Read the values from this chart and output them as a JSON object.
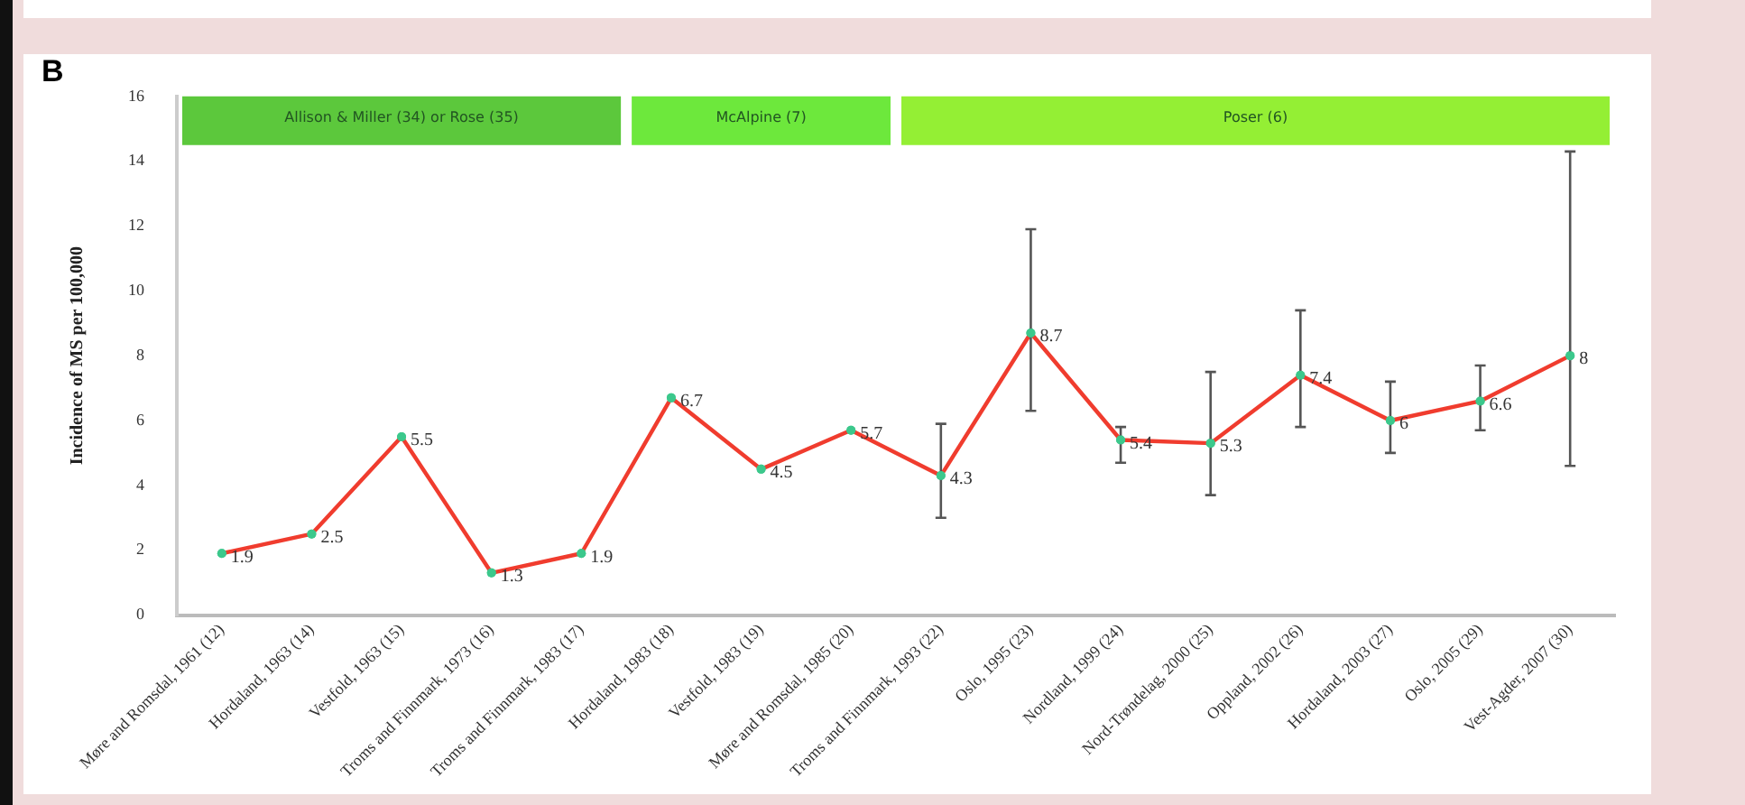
{
  "chart_data": {
    "type": "line",
    "ylabel": "Incidence of MS per 100,000",
    "annotations": [
      "B"
    ],
    "categories": [
      "Møre and Romsdal, 1961 (12)",
      "Hordaland, 1963 (14)",
      "Vestfold, 1963 (15)",
      "Troms and Finnmark, 1973 (16)",
      "Troms and Finnmark, 1983 (17)",
      "Hordaland, 1983 (18)",
      "Vestfold, 1983 (19)",
      "Møre and Romsdal, 1985 (20)",
      "Troms and Finnmark, 1993 (22)",
      "Oslo, 1995 (23)",
      "Nordland, 1999 (24)",
      "Nord-Trøndelag, 2000 (25)",
      "Oppland, 2002 (26)",
      "Hordaland, 2003 (27)",
      "Oslo, 2005 (29)",
      "Vest-Agder, 2007 (30)"
    ],
    "series": [
      {
        "color": "#f03c2e",
        "values": [
          1.9,
          2.5,
          5.5,
          1.3,
          1.9,
          6.7,
          4.5,
          5.7,
          4.3,
          8.7,
          5.4,
          5.3,
          7.4,
          6,
          6.6,
          8
        ],
        "errors": [
          null,
          null,
          null,
          null,
          null,
          null,
          null,
          null,
          [
            3.0,
            5.9
          ],
          [
            6.3,
            11.9
          ],
          [
            4.7,
            5.8
          ],
          [
            3.7,
            7.5
          ],
          [
            5.8,
            9.4
          ],
          [
            5.0,
            7.2
          ],
          [
            5.7,
            7.7
          ],
          [
            4.6,
            14.3
          ]
        ]
      }
    ],
    "marker": "circle",
    "line_style": "solid",
    "data_labels": true,
    "grid": false,
    "legend": false,
    "ylim": [
      0,
      16
    ],
    "yticks": [
      0,
      2,
      4,
      6,
      8,
      10,
      12,
      14,
      16
    ],
    "bands": [
      {
        "axis": "x",
        "from": "Møre and Romsdal, 1961 (12)",
        "to": "Troms and Finnmark, 1983 (17)",
        "label": "Allison & Miller (34) or Rose (35)",
        "color": "#5cc83c"
      },
      {
        "axis": "x",
        "from": "Hordaland, 1983 (18)",
        "to": "Møre and Romsdal, 1985 (20)",
        "label": "McAlpine (7)",
        "color": "#6de83c"
      },
      {
        "axis": "x",
        "from": "Troms and Finnmark, 1993 (22)",
        "to": "Vest-Agder, 2007 (30)",
        "label": "Poser (6)",
        "color": "#94ef34"
      }
    ]
  }
}
